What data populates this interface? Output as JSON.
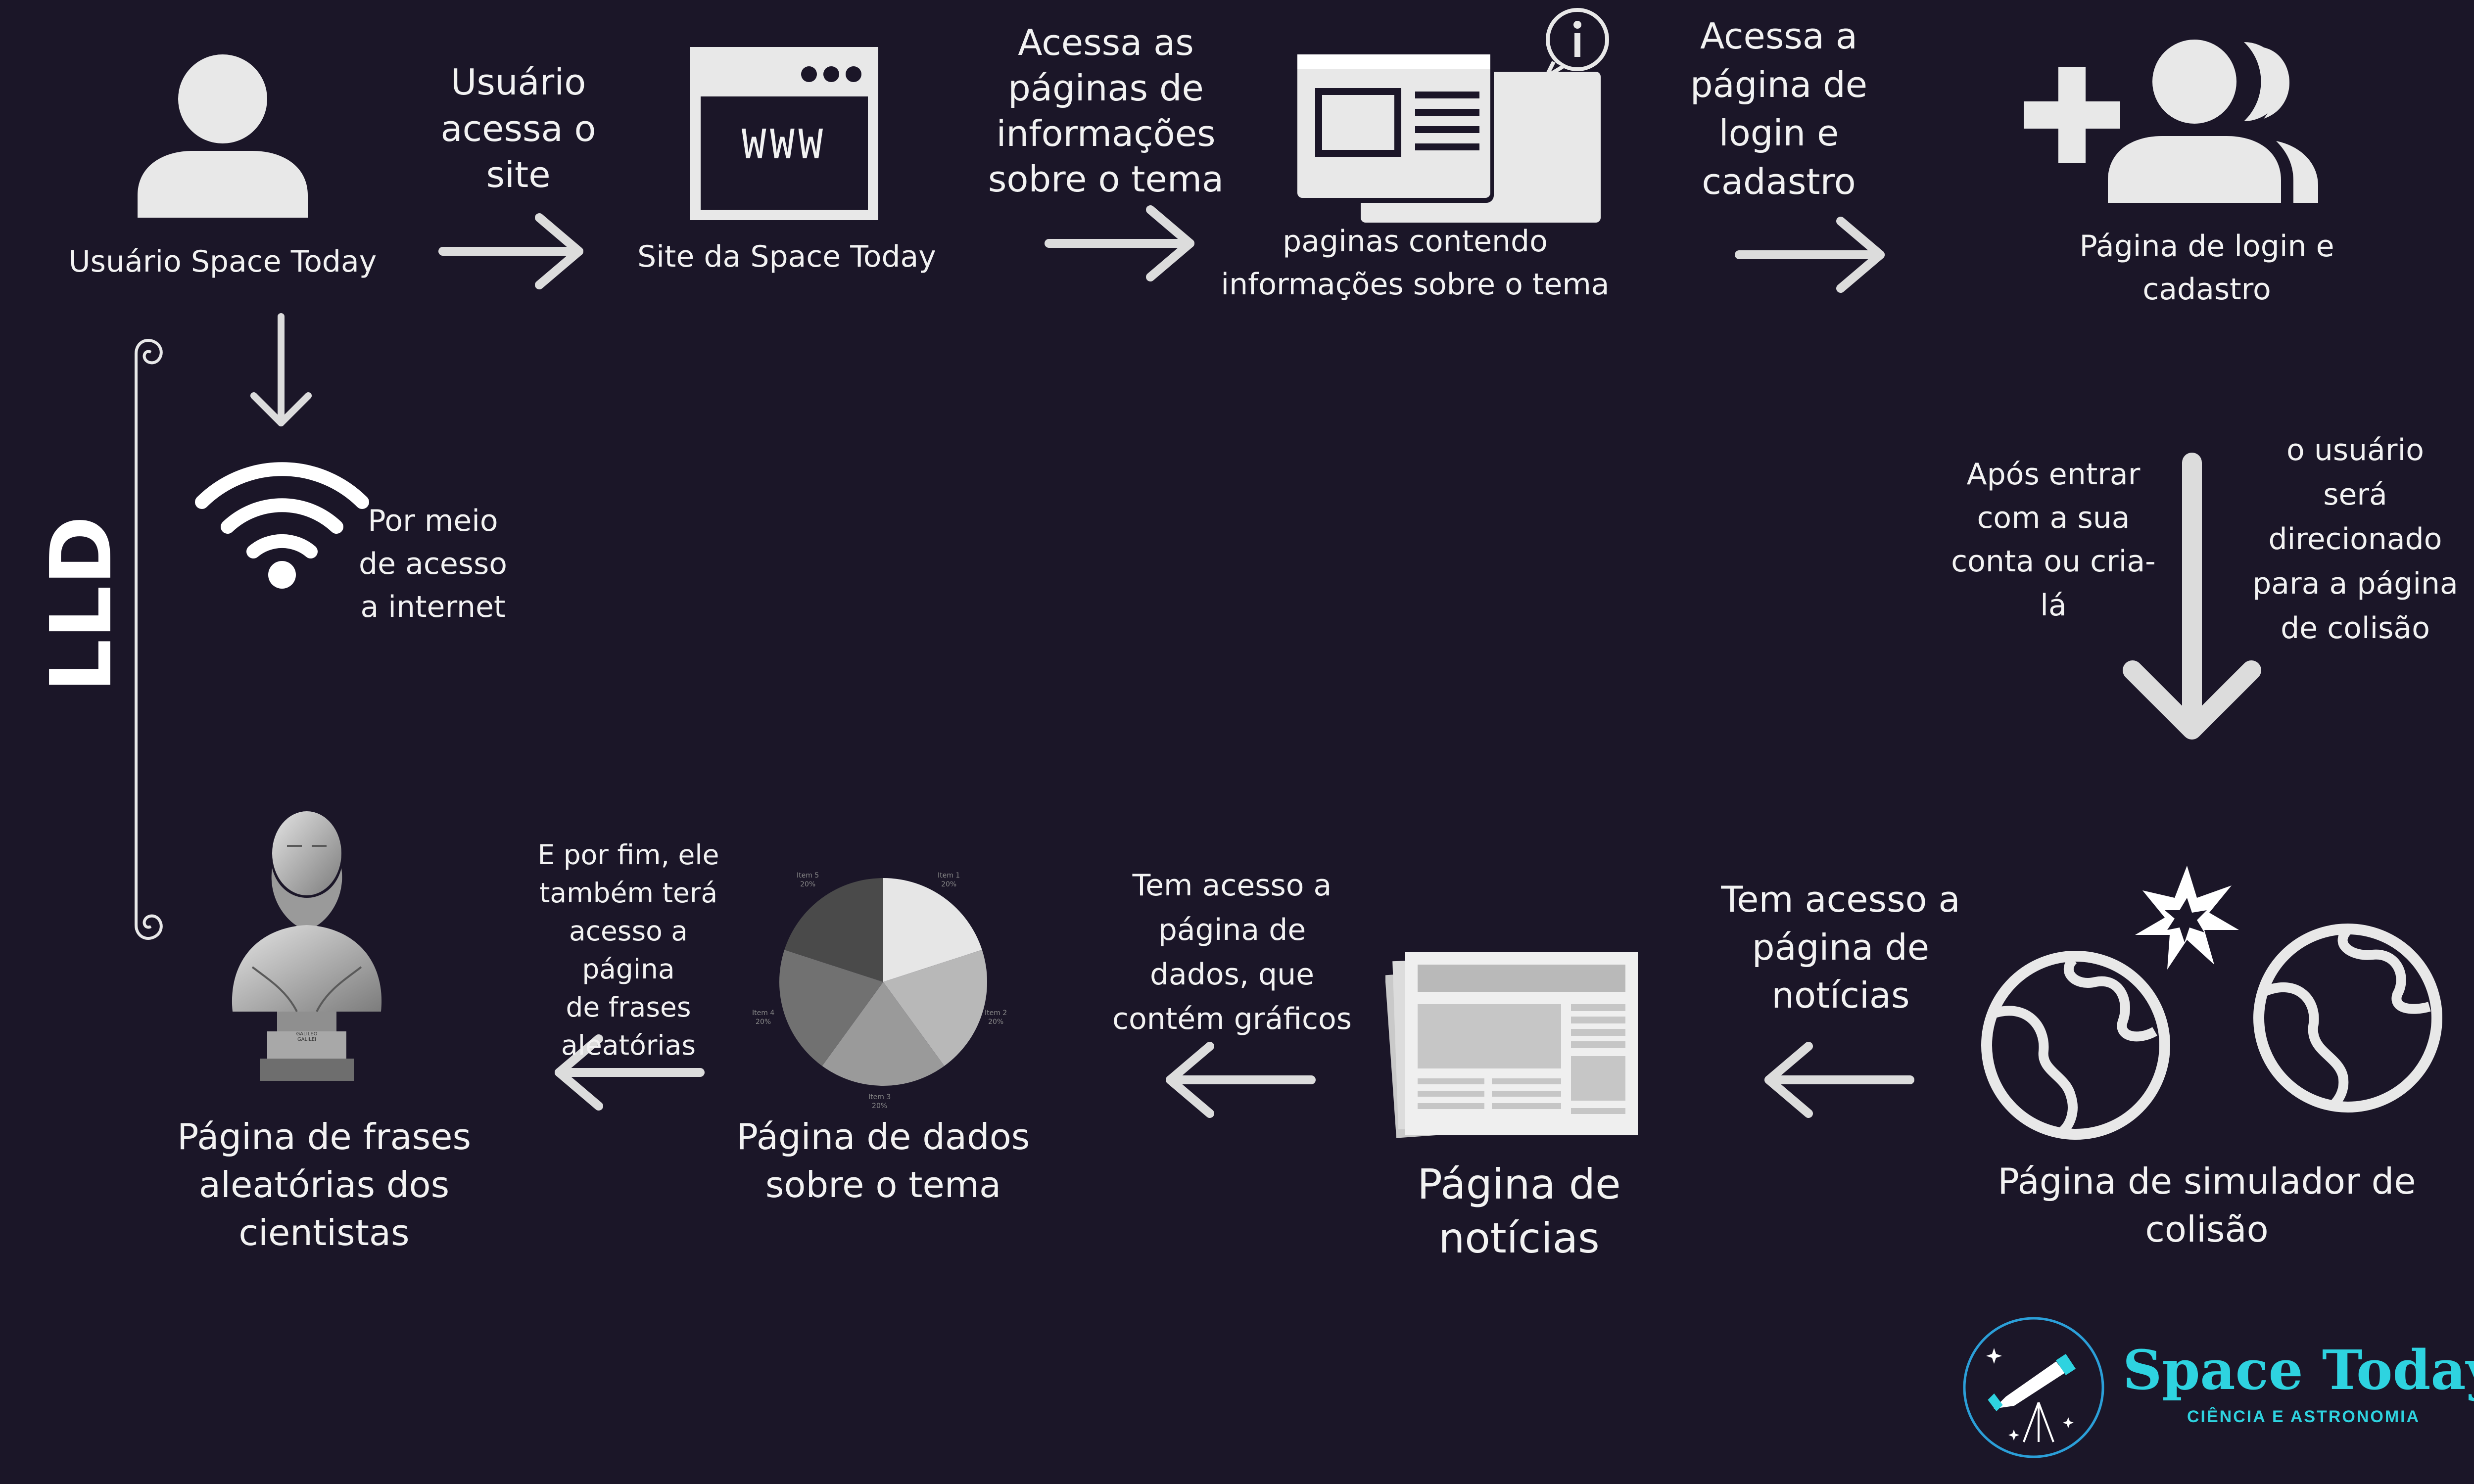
{
  "nodes": {
    "user": "Usuário Space Today",
    "site": "Site da Space Today",
    "info_pages": "paginas contendo\ninformações sobre o tema",
    "login_page": "Página de login e\ncadastro",
    "collision_page": "Página de simulador de\ncolisão",
    "news_page": "Página de notícias",
    "data_page": "Página de dados\nsobre o tema",
    "quotes_page": "Página de frases\naleatórias dos cientistas"
  },
  "steps": {
    "s1": "Usuário\nacessa o\nsite",
    "s2": "Acessa as\npáginas de\ninformações\nsobre o tema",
    "s3": "Acessa a\npágina de\nlogin e\ncadastro",
    "s4a": "Após entrar\ncom a sua\nconta ou cria-\nlá",
    "s4b": "o usuário\nserá\ndirecionado\npara a página\nde colisão",
    "s5": "Tem acesso a\npágina de\nnotícias",
    "s6": "Tem acesso a\npágina de\ndados, que\ncontém gráficos",
    "s7": "E por fim, ele\ntambém terá\nacesso a página\nde frases\naleatórias",
    "internet": "Por meio\nde acesso\na internet"
  },
  "side_label": "LLD",
  "browser_icon_text": "WWW",
  "pie_chart": {
    "labels": [
      "Item 1\n20%",
      "Item 2\n20%",
      "Item 3\n20%",
      "Item 4\n20%",
      "Item 5\n20%"
    ],
    "values": [
      20,
      20,
      20,
      20,
      20
    ],
    "colors": [
      "#e6e6e6",
      "#b8b8b8",
      "#9a9a9a",
      "#717171",
      "#4a4a4a"
    ]
  },
  "bust_plaque": "GALILEO\nGALILEI",
  "brand": {
    "title": "Space Today",
    "subtitle": "CIÊNCIA E ASTRONOMIA",
    "accent": "#2ed3e0"
  },
  "colors": {
    "background": "#1b1628",
    "icon": "#e8e8e8",
    "arrow": "#dcdcdc"
  }
}
